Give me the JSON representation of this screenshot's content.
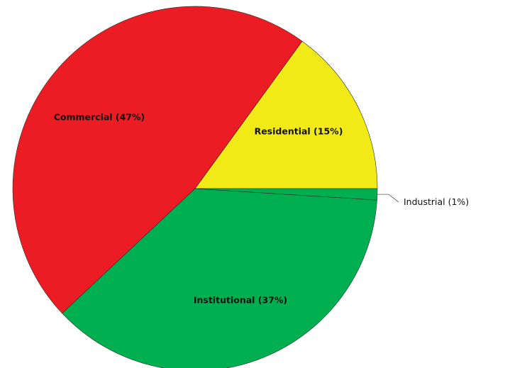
{
  "chart_data": {
    "type": "pie",
    "title": "",
    "start_angle_deg": 0,
    "direction": "counterclockwise",
    "slices": [
      {
        "label": "Residential (15%)",
        "name": "Residential",
        "value": 15,
        "color": "#f2ea17",
        "label_position": "inside"
      },
      {
        "label": "Commercial (47%)",
        "name": "Commercial",
        "value": 47,
        "color": "#ec1c24",
        "label_position": "inside"
      },
      {
        "label": "Institutional (37%)",
        "name": "Institutional",
        "value": 37,
        "color": "#00b050",
        "label_position": "inside"
      },
      {
        "label": "Industrial (1%)",
        "name": "Industrial",
        "value": 1,
        "color": "#00b050",
        "label_position": "outside"
      }
    ]
  }
}
